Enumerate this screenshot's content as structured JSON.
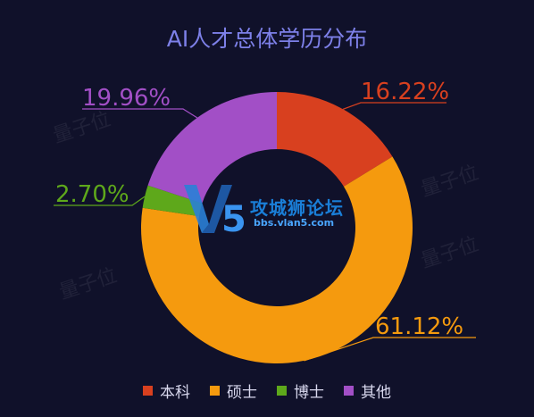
{
  "chart_data": {
    "type": "pie",
    "title": "AI人才总体学历分布",
    "categories": [
      "本科",
      "硕士",
      "博士",
      "其他"
    ],
    "values": [
      16.22,
      61.12,
      2.7,
      19.96
    ],
    "value_labels": [
      "16.22%",
      "61.12%",
      "2.70%",
      "19.96%"
    ],
    "colors": [
      "#d8401f",
      "#f59a0e",
      "#5ea81b",
      "#a24fc6"
    ],
    "donut": true,
    "legend": "bottom"
  },
  "watermark": {
    "text": "量子位",
    "logo_text": "攻城狮论坛",
    "logo_url": "bbs.vlan5.com"
  }
}
